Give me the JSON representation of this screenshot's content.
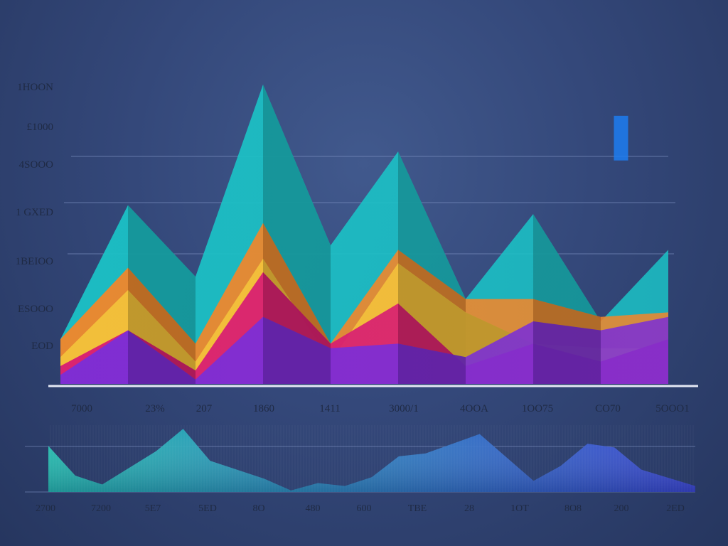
{
  "colors": {
    "background": "#34487a",
    "gridline": "#7f93c4",
    "axis": "#e4e8f4",
    "tick_text": "#1f2a44"
  },
  "chart_data": [
    {
      "type": "area",
      "title": "",
      "xlabel": "",
      "ylabel": "",
      "grid": true,
      "legend": "none",
      "y_tick_labels": [
        "1HOON",
        "£1000",
        "4SOOO",
        "1 GXED",
        "1BEIOO",
        "ESOOO",
        "EOD"
      ],
      "x_tick_labels": [
        "7000",
        "23%",
        "207",
        "1860",
        "1411",
        "3000/1",
        "4OOA",
        "1OO75",
        "CO70",
        "5OOO1"
      ],
      "series": [
        {
          "name": "",
          "color": "#1bc2c6",
          "x": [
            0,
            1,
            2,
            3,
            4,
            5,
            6,
            7,
            8,
            9
          ],
          "values": [
            50,
            200,
            120,
            335,
            155,
            260,
            95,
            190,
            70,
            150
          ]
        },
        {
          "name": "",
          "color": "#f2862a",
          "x": [
            0,
            1,
            2,
            3,
            4,
            5,
            6,
            7,
            8,
            9
          ],
          "values": [
            50,
            130,
            45,
            180,
            45,
            150,
            95,
            95,
            75,
            80
          ]
        },
        {
          "name": "",
          "color": "#f3c23b",
          "x": [
            0,
            1,
            2,
            3,
            4,
            5,
            6,
            7,
            8,
            9
          ],
          "values": [
            30,
            105,
            25,
            140,
            25,
            135,
            80,
            45,
            40,
            40
          ]
        },
        {
          "name": "",
          "color": "#d81b73",
          "x": [
            0,
            1,
            2,
            3,
            4,
            5,
            6,
            7,
            8,
            9
          ],
          "values": [
            20,
            60,
            15,
            125,
            45,
            90,
            20,
            45,
            25,
            50
          ]
        },
        {
          "name": "",
          "color": "#7a2ed8",
          "x": [
            0,
            1,
            2,
            3,
            4,
            5,
            6,
            7,
            8,
            9
          ],
          "values": [
            10,
            60,
            5,
            75,
            40,
            45,
            30,
            70,
            60,
            75
          ]
        }
      ],
      "accent_bar": {
        "x": 8.3,
        "low": 250,
        "high": 300,
        "color": "#1d7df0"
      },
      "xlim": [
        0,
        9
      ],
      "ylim": [
        0,
        350
      ]
    },
    {
      "type": "area",
      "title": "",
      "xlabel": "",
      "ylabel": "",
      "grid": true,
      "legend": "none",
      "x_tick_labels": [
        "2700",
        "7200",
        "5E7",
        "5ED",
        "8O",
        "480",
        "600",
        "TBE",
        "28",
        "1OT",
        "8O8",
        "200",
        "2ED"
      ],
      "series": [
        {
          "name": "",
          "color_start": "#23c6b4",
          "color_end": "#3a43d8",
          "x": [
            0,
            0.5,
            1,
            2,
            2.5,
            3,
            4,
            4.5,
            5,
            5.5,
            6,
            6.5,
            7,
            8,
            9,
            9.5,
            10,
            10.5,
            11,
            12
          ],
          "values": [
            62,
            22,
            10,
            55,
            85,
            42,
            18,
            2,
            12,
            8,
            20,
            48,
            52,
            78,
            15,
            35,
            65,
            60,
            30,
            8
          ]
        }
      ],
      "xlim": [
        0,
        12
      ],
      "ylim": [
        0,
        90
      ]
    }
  ]
}
